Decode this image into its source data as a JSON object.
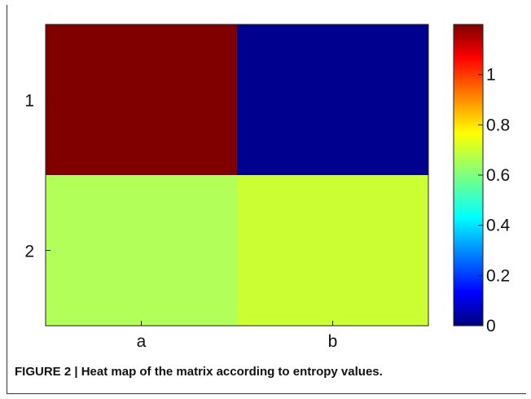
{
  "chart_data": {
    "type": "heatmap",
    "title": "",
    "xlabel": "",
    "ylabel": "",
    "x_categories": [
      "a",
      "b"
    ],
    "y_categories": [
      "1",
      "2"
    ],
    "values": [
      [
        1.2,
        0.0
      ],
      [
        0.67,
        0.8
      ]
    ],
    "colormap": "jet",
    "color_range": [
      0,
      1.2
    ],
    "colorbar_ticks": [
      "0",
      "0.2",
      "0.4",
      "0.6",
      "0.8",
      "1"
    ],
    "colorbar_tick_values": [
      0,
      0.2,
      0.4,
      0.6,
      0.8,
      1.0
    ],
    "cell_colors": [
      [
        "#800000",
        "#00008f"
      ],
      [
        "#b2ff5a",
        "#ccff33"
      ]
    ]
  },
  "caption": "FIGURE 2 | Heat map of the matrix according to entropy values."
}
